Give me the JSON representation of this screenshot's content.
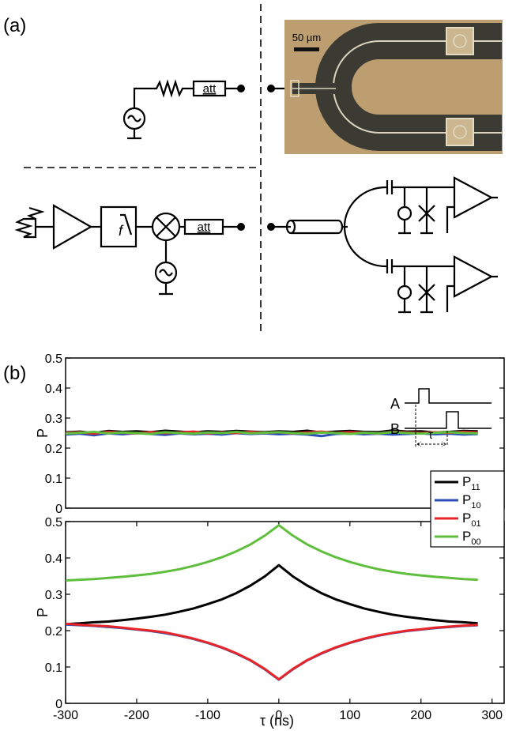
{
  "panel_a": {
    "label": "(a)",
    "scale_bar": "50 µm",
    "attenuator_labels": [
      "att",
      "att"
    ],
    "filter_label": "f"
  },
  "panel_b_label": "(b)",
  "chart_data": [
    {
      "type": "line",
      "ylabel": "P",
      "annotations": [
        "A",
        "B",
        "τ"
      ],
      "legend": "lower right",
      "xlim": [
        -300,
        317
      ],
      "ylim": [
        0,
        0.5
      ],
      "yticks": [
        0,
        0.1,
        0.2,
        0.3,
        0.4,
        0.5
      ],
      "x": [
        -300,
        -280,
        -260,
        -240,
        -220,
        -200,
        -180,
        -160,
        -140,
        -120,
        -100,
        -80,
        -60,
        -40,
        -20,
        0,
        20,
        40,
        60,
        80,
        100,
        120,
        140,
        160,
        180,
        200,
        220,
        240,
        260,
        280
      ],
      "series": [
        {
          "name": "P11",
          "color": "#000000",
          "values": [
            0.252,
            0.255,
            0.25,
            0.257,
            0.254,
            0.256,
            0.253,
            0.258,
            0.255,
            0.252,
            0.256,
            0.254,
            0.257,
            0.255,
            0.253,
            0.256,
            0.254,
            0.258,
            0.252,
            0.255,
            0.257,
            0.254,
            0.253,
            0.259,
            0.255,
            0.256,
            0.252,
            0.254,
            0.257,
            0.256
          ]
        },
        {
          "name": "P10",
          "color": "#2b4fb5",
          "values": [
            0.245,
            0.248,
            0.243,
            0.249,
            0.246,
            0.25,
            0.247,
            0.244,
            0.249,
            0.246,
            0.248,
            0.245,
            0.25,
            0.247,
            0.249,
            0.246,
            0.248,
            0.245,
            0.24,
            0.247,
            0.249,
            0.246,
            0.248,
            0.245,
            0.247,
            0.249,
            0.246,
            0.248,
            0.245,
            0.247
          ]
        },
        {
          "name": "P01",
          "color": "#e8262a",
          "values": [
            0.25,
            0.253,
            0.248,
            0.254,
            0.251,
            0.249,
            0.253,
            0.25,
            0.252,
            0.255,
            0.249,
            0.252,
            0.25,
            0.254,
            0.251,
            0.253,
            0.249,
            0.252,
            0.255,
            0.25,
            0.253,
            0.251,
            0.249,
            0.254,
            0.252,
            0.25,
            0.253,
            0.251,
            0.254,
            0.252
          ]
        },
        {
          "name": "P00",
          "color": "#5fbf3c",
          "values": [
            0.248,
            0.251,
            0.254,
            0.249,
            0.252,
            0.25,
            0.247,
            0.253,
            0.25,
            0.248,
            0.252,
            0.25,
            0.254,
            0.249,
            0.251,
            0.253,
            0.25,
            0.248,
            0.252,
            0.25,
            0.247,
            0.251,
            0.249,
            0.253,
            0.25,
            0.248,
            0.251,
            0.253,
            0.25,
            0.249
          ]
        }
      ]
    },
    {
      "type": "line",
      "ylabel": "P",
      "xlabel": "τ (ns)",
      "xlim": [
        -300,
        317
      ],
      "xticks": [
        -300,
        -200,
        -100,
        0,
        100,
        200,
        300
      ],
      "ylim": [
        0,
        0.5
      ],
      "yticks": [
        0,
        0.1,
        0.2,
        0.3,
        0.4,
        0.5
      ],
      "x": [
        -300,
        -280,
        -260,
        -240,
        -220,
        -200,
        -180,
        -160,
        -140,
        -120,
        -100,
        -80,
        -60,
        -40,
        -20,
        0,
        20,
        40,
        60,
        80,
        100,
        120,
        140,
        160,
        180,
        200,
        220,
        240,
        260,
        280
      ],
      "series": [
        {
          "name": "P00",
          "color": "#5fbf3c",
          "values": [
            0.338,
            0.34,
            0.342,
            0.345,
            0.348,
            0.352,
            0.356,
            0.362,
            0.369,
            0.378,
            0.389,
            0.402,
            0.418,
            0.437,
            0.461,
            0.49,
            0.461,
            0.437,
            0.418,
            0.402,
            0.389,
            0.378,
            0.369,
            0.362,
            0.356,
            0.352,
            0.348,
            0.345,
            0.342,
            0.34
          ]
        },
        {
          "name": "P11",
          "color": "#000000",
          "values": [
            0.218,
            0.22,
            0.223,
            0.225,
            0.229,
            0.233,
            0.238,
            0.244,
            0.252,
            0.261,
            0.273,
            0.286,
            0.303,
            0.324,
            0.349,
            0.38,
            0.349,
            0.324,
            0.303,
            0.286,
            0.273,
            0.261,
            0.252,
            0.244,
            0.238,
            0.233,
            0.229,
            0.225,
            0.223,
            0.22
          ]
        },
        {
          "name": "P10",
          "color": "#2b4fb5",
          "values": [
            0.217,
            0.215,
            0.213,
            0.21,
            0.207,
            0.203,
            0.199,
            0.193,
            0.186,
            0.177,
            0.166,
            0.153,
            0.137,
            0.118,
            0.094,
            0.065,
            0.094,
            0.118,
            0.137,
            0.153,
            0.166,
            0.177,
            0.186,
            0.193,
            0.199,
            0.203,
            0.207,
            0.21,
            0.213,
            0.215
          ]
        },
        {
          "name": "P01",
          "color": "#e8262a",
          "values": [
            0.219,
            0.216,
            0.214,
            0.212,
            0.208,
            0.204,
            0.2,
            0.195,
            0.187,
            0.178,
            0.167,
            0.154,
            0.138,
            0.119,
            0.095,
            0.066,
            0.095,
            0.119,
            0.138,
            0.154,
            0.167,
            0.178,
            0.187,
            0.194,
            0.2,
            0.204,
            0.208,
            0.211,
            0.214,
            0.216
          ]
        }
      ]
    }
  ]
}
